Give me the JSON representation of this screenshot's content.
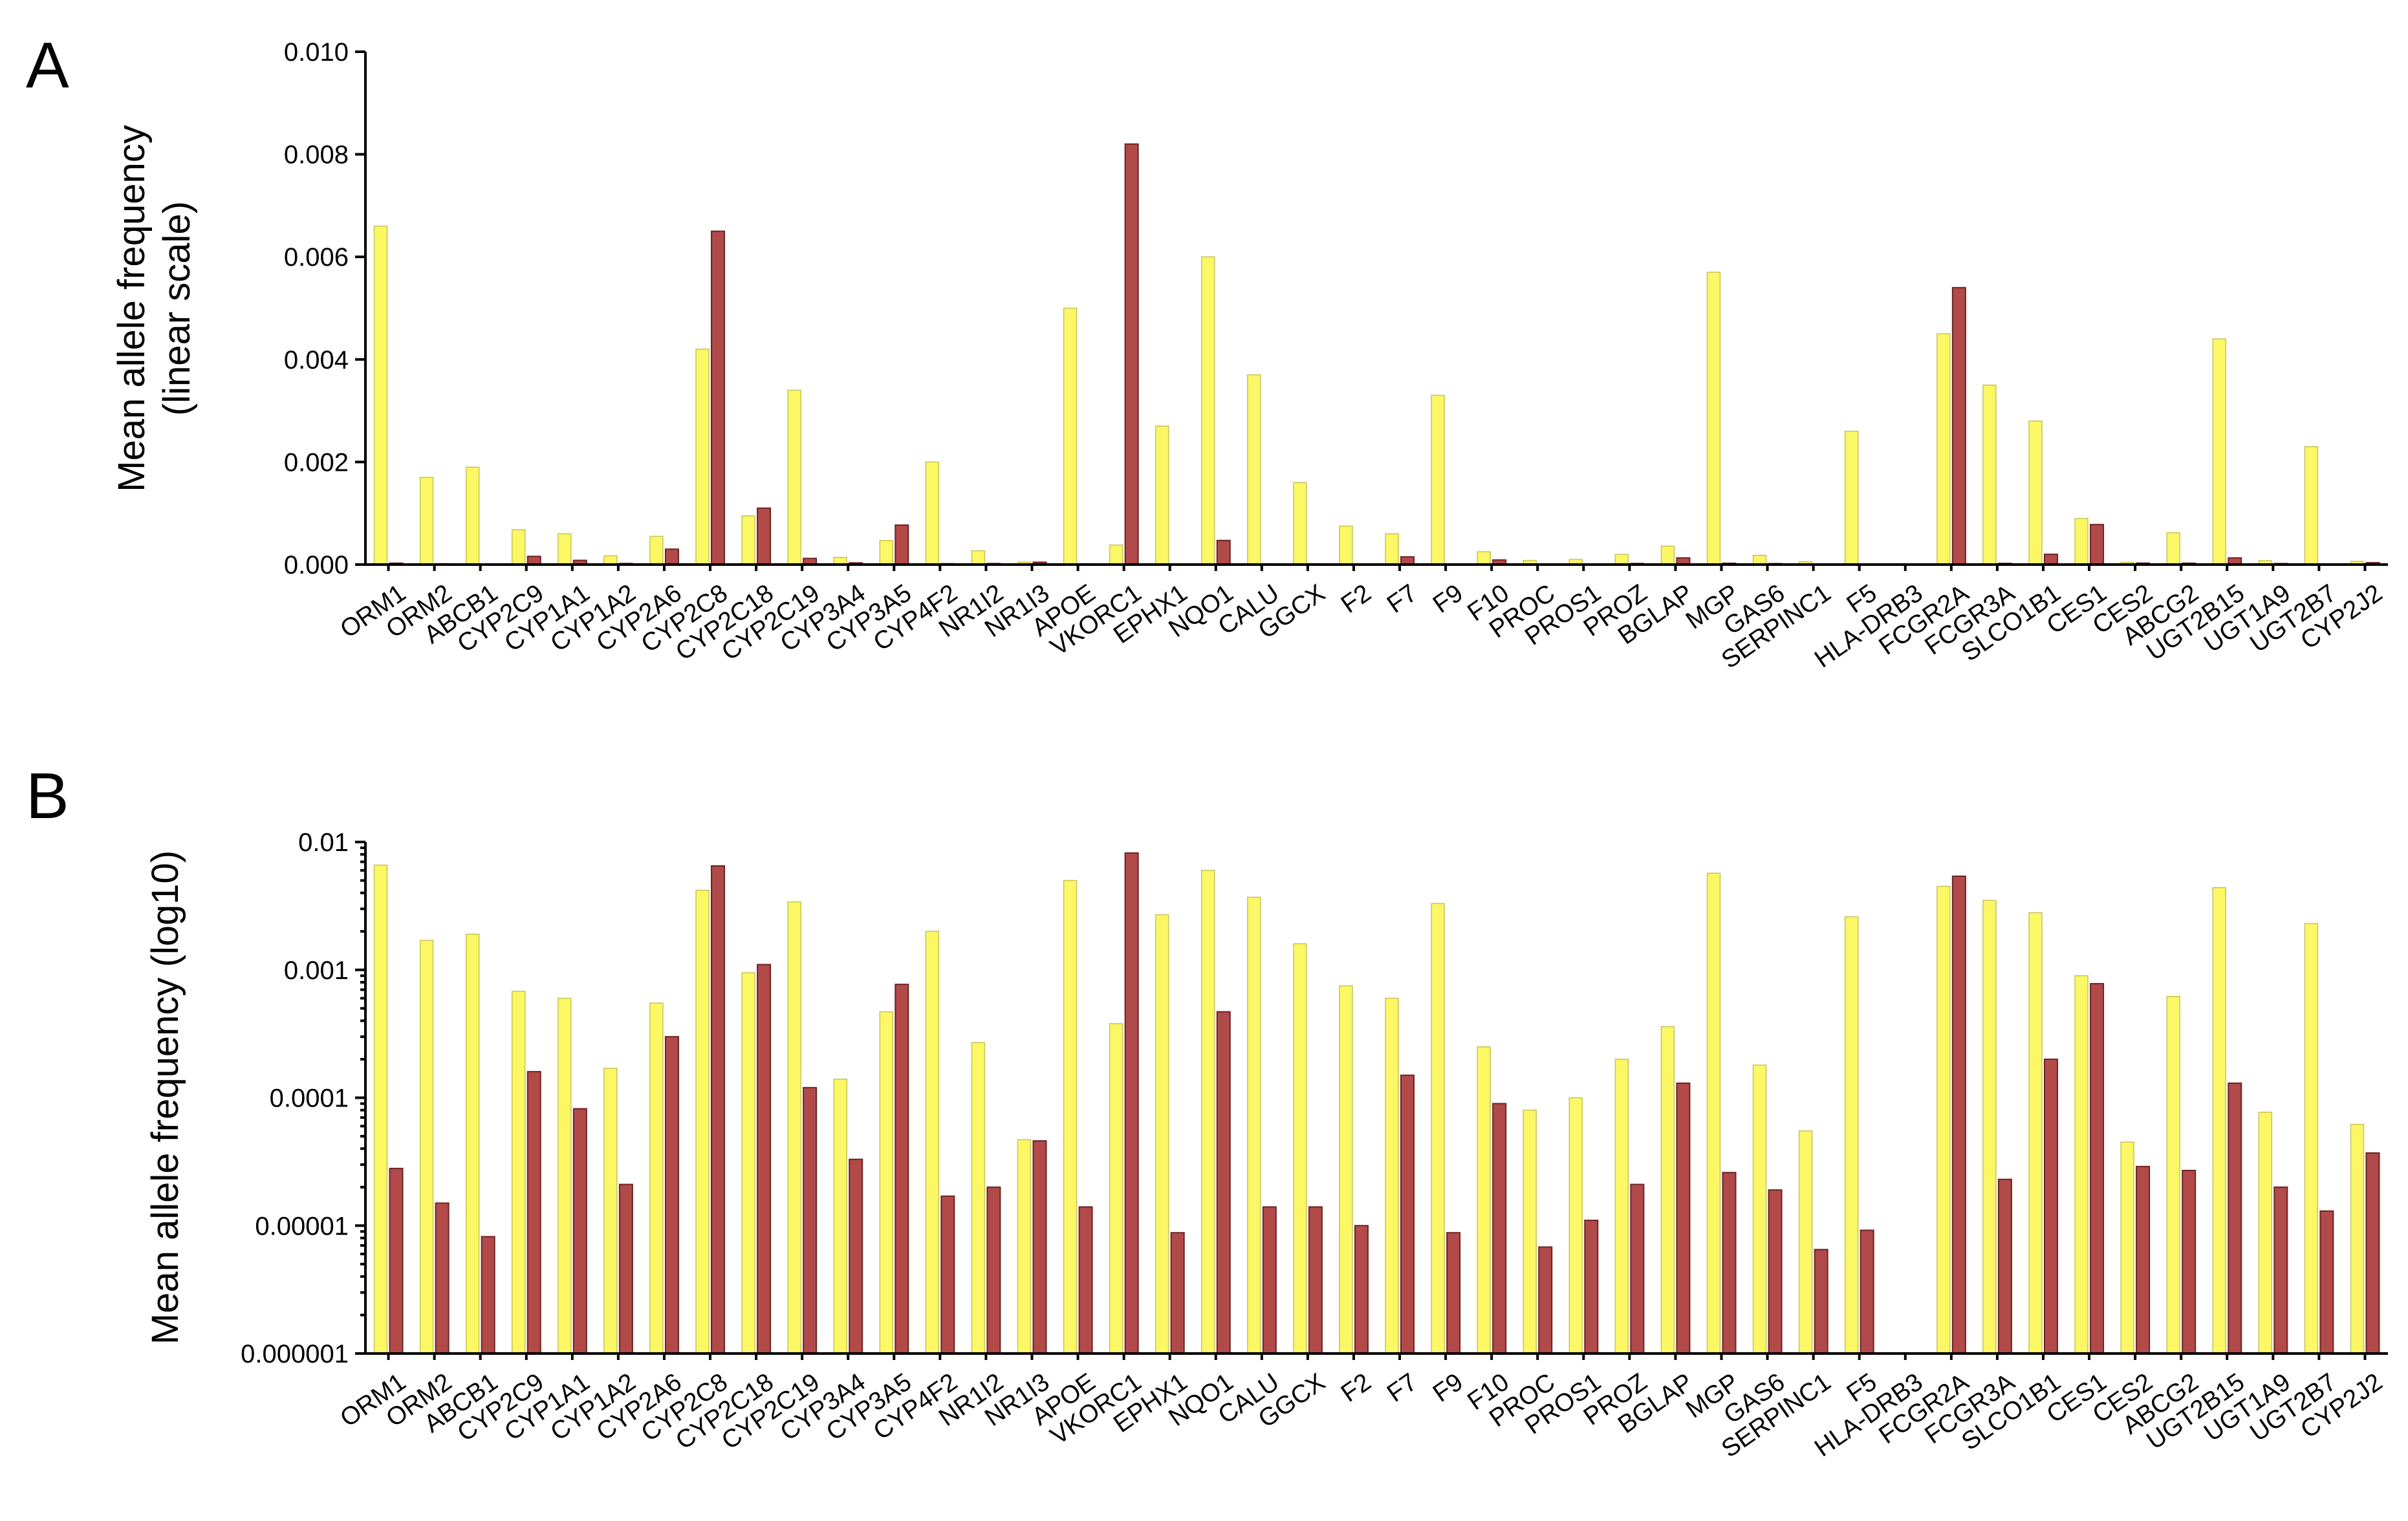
{
  "chart_data": [
    {
      "type": "bar",
      "panel": "A",
      "ylabel_lines": [
        "Mean allele frequency",
        "(linear scale)"
      ],
      "yscale": "linear",
      "ylim": [
        0,
        0.01
      ],
      "yticks": [
        0,
        0.002,
        0.004,
        0.006,
        0.008,
        0.01
      ],
      "ytick_labels": [
        "0.000",
        "0.002",
        "0.004",
        "0.006",
        "0.008",
        "0.010"
      ],
      "series": [
        {
          "name": "series-yellow",
          "color": "#fbf765",
          "values": [
            0.0066,
            0.0017,
            0.0019,
            0.00068,
            0.0006,
            0.00017,
            0.00055,
            0.0042,
            0.00095,
            0.0034,
            0.00014,
            0.00047,
            0.002,
            0.00027,
            4.7e-05,
            0.005,
            0.00038,
            0.0027,
            0.006,
            0.0037,
            0.0016,
            0.00075,
            0.0006,
            0.0033,
            0.00025,
            8e-05,
            0.0001,
            0.0002,
            0.00036,
            0.0057,
            0.00018,
            5.5e-05,
            0.0026,
            0,
            0.0045,
            0.0035,
            0.0028,
            0.0009,
            4.5e-05,
            0.00062,
            0.0044,
            7.7e-05,
            0.0023,
            6.2e-05
          ]
        },
        {
          "name": "series-red",
          "color": "#b24a4a",
          "values": [
            2.8e-05,
            1.5e-05,
            8.2e-06,
            0.00016,
            8.2e-05,
            2.1e-05,
            0.0003,
            0.0065,
            0.0011,
            0.00012,
            3.3e-05,
            0.00077,
            1.7e-05,
            2e-05,
            4.6e-05,
            1.4e-05,
            0.0082,
            8.8e-06,
            0.00047,
            1.4e-05,
            1.4e-05,
            1e-05,
            0.00015,
            8.8e-06,
            9e-05,
            6.8e-06,
            1.1e-05,
            2.1e-05,
            0.00013,
            2.6e-05,
            1.9e-05,
            6.5e-06,
            9.2e-06,
            0,
            0.0054,
            2.3e-05,
            0.0002,
            0.00078,
            2.9e-05,
            2.7e-05,
            0.00013,
            2e-05,
            1.3e-05,
            3.7e-05
          ]
        }
      ]
    },
    {
      "type": "bar",
      "panel": "B",
      "ylabel_lines": [
        "Mean allele frequency  (log10)"
      ],
      "yscale": "log10",
      "ylim": [
        1e-06,
        0.01
      ],
      "yticks": [
        1e-06,
        1e-05,
        0.0001,
        0.001,
        0.01
      ],
      "ytick_labels": [
        "0.000001",
        "0.00001",
        "0.0001",
        "0.001",
        "0.01"
      ]
    }
  ],
  "categories": [
    "ORM1",
    "ORM2",
    "ABCB1",
    "CYP2C9",
    "CYP1A1",
    "CYP1A2",
    "CYP2A6",
    "CYP2C8",
    "CYP2C18",
    "CYP2C19",
    "CYP3A4",
    "CYP3A5",
    "CYP4F2",
    "NR1I2",
    "NR1I3",
    "APOE",
    "VKORC1",
    "EPHX1",
    "NQO1",
    "CALU",
    "GGCX",
    "F2",
    "F7",
    "F9",
    "F10",
    "PROC",
    "PROS1",
    "PROZ",
    "BGLAP",
    "MGP",
    "GAS6",
    "SERPINC1",
    "F5",
    "HLA-DRB3",
    "FCGR2A",
    "FCGR3A",
    "SLCO1B1",
    "CES1",
    "CES2",
    "ABCG2",
    "UGT2B15",
    "UGT1A9",
    "UGT2B7",
    "CYP2J2"
  ]
}
